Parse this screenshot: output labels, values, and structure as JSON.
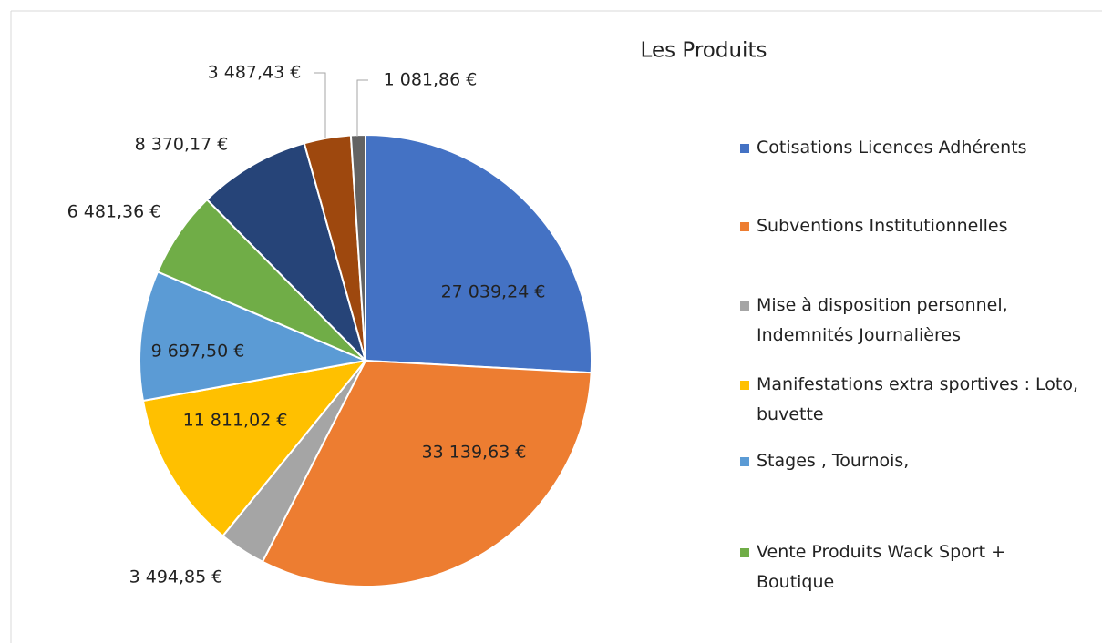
{
  "chart_data": {
    "type": "pie",
    "title": "Les Produits",
    "categories": [
      "Cotisations Licences Adhérents",
      "Subventions Institutionnelles",
      "Mise à disposition personnel, Indemnités Journalières",
      "Manifestations extra sportives : Loto, buvette",
      "Stages , Tournois,",
      "Vente Produits Wack Sport + Boutique",
      null,
      null,
      null
    ],
    "values": [
      27039.24,
      33139.63,
      3494.85,
      11811.02,
      9697.5,
      6481.36,
      8370.17,
      3487.43,
      1081.86
    ],
    "value_labels": [
      "27 039,24 €",
      "33 139,63 €",
      "3 494,85 €",
      "11 811,02 €",
      "9 697,50 €",
      "6 481,36 €",
      "8 370,17 €",
      "3 487,43 €",
      "1 081,86 €"
    ],
    "colors": [
      "#4472c4",
      "#ed7d31",
      "#a5a5a5",
      "#ffc000",
      "#5b9bd5",
      "#70ad47",
      "#264478",
      "#9e480e",
      "#636363"
    ],
    "legend": "right"
  }
}
